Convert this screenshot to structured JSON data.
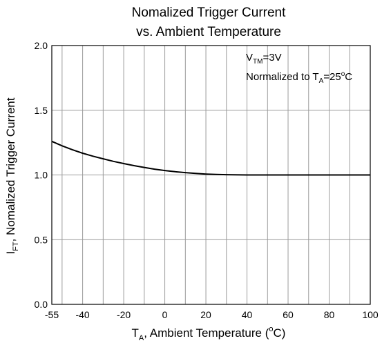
{
  "chart_data": {
    "type": "line",
    "title_line1": "Nomalized Trigger Current",
    "title_line2": "vs. Ambient Temperature",
    "xlabel": {
      "main": "T",
      "sub": "A",
      "rest": ", Ambient Temperature (",
      "sup": "o",
      "end": "C)"
    },
    "ylabel": {
      "main": "I",
      "sub": "FT",
      "rest": ", Nomalized Trigger Current"
    },
    "xlim": [
      -55,
      100
    ],
    "ylim": [
      0.0,
      2.0
    ],
    "x_ticks": [
      -55,
      -40,
      -20,
      0,
      20,
      40,
      60,
      80,
      100
    ],
    "x_tick_labels": [
      "-55",
      "-40",
      "-20",
      "0",
      "20",
      "40",
      "60",
      "80",
      "100"
    ],
    "x_grid": [
      -50,
      -40,
      -30,
      -20,
      -10,
      0,
      10,
      20,
      30,
      40,
      50,
      60,
      70,
      80,
      90
    ],
    "y_ticks": [
      0.0,
      0.5,
      1.0,
      1.5,
      2.0
    ],
    "y_tick_labels": [
      "0.0",
      "0.5",
      "1.0",
      "1.5",
      "2.0"
    ],
    "y_grid": [
      0.5,
      1.0,
      1.5
    ],
    "grid": true,
    "annotations": [
      {
        "main": "V",
        "sub": "TM",
        "rest": "=3V"
      },
      {
        "main": "Normalized to T",
        "sub": "A",
        "rest": "=25",
        "sup": "o",
        "end": "C"
      }
    ],
    "series": [
      {
        "x": [
          -55,
          -50,
          -45,
          -40,
          -35,
          -30,
          -25,
          -20,
          -15,
          -10,
          -5,
          0,
          5,
          10,
          15,
          20,
          25,
          30,
          40,
          50,
          60,
          70,
          80,
          90,
          100
        ],
        "values": [
          1.26,
          1.225,
          1.195,
          1.168,
          1.145,
          1.125,
          1.105,
          1.088,
          1.072,
          1.058,
          1.045,
          1.034,
          1.025,
          1.018,
          1.012,
          1.007,
          1.004,
          1.002,
          1.0,
          1.0,
          1.0,
          1.0,
          1.0,
          1.0,
          1.0
        ],
        "color": "#000000"
      }
    ]
  }
}
